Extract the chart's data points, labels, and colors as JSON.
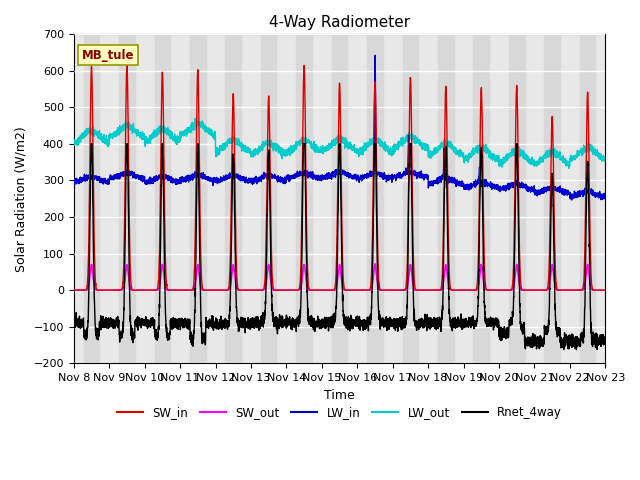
{
  "title": "4-Way Radiometer",
  "xlabel": "Time",
  "ylabel": "Solar Radiation (W/m2)",
  "ylim": [
    -200,
    700
  ],
  "yticks": [
    -200,
    -100,
    0,
    100,
    200,
    300,
    400,
    500,
    600,
    700
  ],
  "date_labels": [
    "Nov 8",
    "Nov 9",
    "Nov 10",
    "Nov 11",
    "Nov 12",
    "Nov 13",
    "Nov 14",
    "Nov 15",
    "Nov 16",
    "Nov 17",
    "Nov 18",
    "Nov 19",
    "Nov 20",
    "Nov 21",
    "Nov 22",
    "Nov 23"
  ],
  "station_label": "MB_tule",
  "colors": {
    "SW_in": "#dd0000",
    "SW_out": "#ff00ff",
    "LW_in": "#0000cc",
    "LW_out": "#00cccc",
    "Rnet_4way": "#000000"
  },
  "n_days": 15,
  "points_per_day": 288,
  "background_color": "#ffffff",
  "plot_bg_color": "#e8e8e8",
  "grid_color": "#ffffff"
}
